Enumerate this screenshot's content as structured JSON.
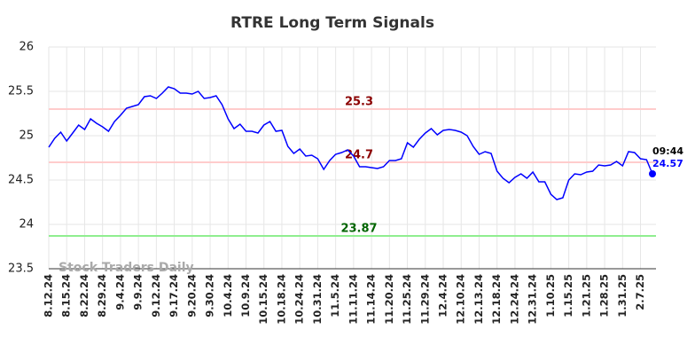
{
  "chart_data": {
    "type": "line",
    "title": "RTRE Long Term Signals",
    "watermark": "Stock Traders Daily",
    "categories": [
      "8.12.24",
      null,
      null,
      "8.15.24",
      null,
      null,
      "8.22.24",
      null,
      null,
      "8.29.24",
      null,
      null,
      "9.4.24",
      null,
      null,
      "9.9.24",
      null,
      null,
      "9.12.24",
      null,
      null,
      "9.17.24",
      null,
      null,
      "9.20.24",
      null,
      null,
      "9.30.24",
      null,
      null,
      "10.4.24",
      null,
      null,
      "10.9.24",
      null,
      null,
      "10.15.24",
      null,
      null,
      "10.18.24",
      null,
      null,
      "10.24.24",
      null,
      null,
      "10.31.24",
      null,
      null,
      "11.5.24",
      null,
      null,
      "11.11.24",
      null,
      null,
      "11.14.24",
      null,
      null,
      "11.20.24",
      null,
      null,
      "11.25.24",
      null,
      null,
      "11.29.24",
      null,
      null,
      "12.4.24",
      null,
      null,
      "12.10.24",
      null,
      null,
      "12.13.24",
      null,
      null,
      "12.18.24",
      null,
      null,
      "12.24.24",
      null,
      null,
      "12.31.24",
      null,
      null,
      "1.10.25",
      null,
      null,
      "1.15.25",
      null,
      null,
      "1.21.25",
      null,
      null,
      "1.28.25",
      null,
      null,
      "1.31.25",
      null,
      null,
      "2.7.25",
      null,
      null
    ],
    "values": [
      24.87,
      24.97,
      25.04,
      24.94,
      25.03,
      25.12,
      25.07,
      25.19,
      25.14,
      25.1,
      25.05,
      25.16,
      25.23,
      25.31,
      25.33,
      25.35,
      25.44,
      25.45,
      25.42,
      25.48,
      25.55,
      25.53,
      25.48,
      25.48,
      25.47,
      25.5,
      25.42,
      25.43,
      25.45,
      25.35,
      25.19,
      25.08,
      25.13,
      25.05,
      25.05,
      25.03,
      25.12,
      25.16,
      25.05,
      25.06,
      24.88,
      24.8,
      24.85,
      24.77,
      24.78,
      24.74,
      24.62,
      24.72,
      24.79,
      24.81,
      24.84,
      24.77,
      24.65,
      24.65,
      24.64,
      24.63,
      24.65,
      24.72,
      24.72,
      24.74,
      24.92,
      24.87,
      24.96,
      25.03,
      25.08,
      25.01,
      25.06,
      25.07,
      25.06,
      25.04,
      25.0,
      24.88,
      24.79,
      24.82,
      24.8,
      24.6,
      24.52,
      24.47,
      24.53,
      24.57,
      24.52,
      24.59,
      24.48,
      24.48,
      24.34,
      24.28,
      24.3,
      24.5,
      24.57,
      24.56,
      24.59,
      24.6,
      24.67,
      24.66,
      24.67,
      24.71,
      24.66,
      24.82,
      24.81,
      24.74,
      24.73,
      24.57
    ],
    "color": "#0000ff",
    "last_time": "09:44",
    "hlines": [
      {
        "value": 25.3,
        "color": "#ffcccc",
        "text_color": "#8b0000"
      },
      {
        "value": 24.7,
        "color": "#ffcccc",
        "text_color": "#8b0000"
      },
      {
        "value": 23.87,
        "color": "#90ee90",
        "text_color": "#006400"
      }
    ],
    "ylim": [
      23.5,
      26
    ],
    "yticks": [
      23.5,
      24,
      24.5,
      25,
      25.5,
      26
    ],
    "grid": true
  }
}
